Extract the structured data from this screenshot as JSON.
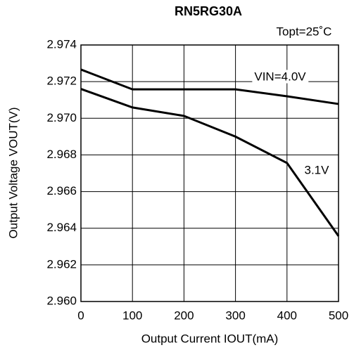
{
  "chart_data": {
    "type": "line",
    "title": "RN5RG30A",
    "annotation": "Topt=25˚C",
    "x_label": "Output Current IOUT(mA)",
    "y_label": "Output Voltage VOUT(V)",
    "x": [
      0,
      100,
      200,
      300,
      400,
      500
    ],
    "series": [
      {
        "name": "VIN=4.0V",
        "color": "#000000",
        "values": [
          2.97266,
          2.97158,
          2.97158,
          2.97158,
          2.9712,
          2.97078
        ]
      },
      {
        "name": "3.1V",
        "color": "#000000",
        "values": [
          2.9716,
          2.97059,
          2.97013,
          2.969,
          2.96756,
          2.96357
        ]
      }
    ],
    "xlim": [
      0,
      500
    ],
    "xticks": [
      0,
      100,
      200,
      300,
      400,
      500
    ],
    "ylim": [
      2.96,
      2.974
    ],
    "yticks": [
      {
        "value": 2.96,
        "label": "2.960"
      },
      2.962,
      2.964,
      2.966,
      2.968,
      {
        "value": 2.97,
        "label": "2.970"
      },
      2.972,
      2.974
    ],
    "grid": true
  }
}
